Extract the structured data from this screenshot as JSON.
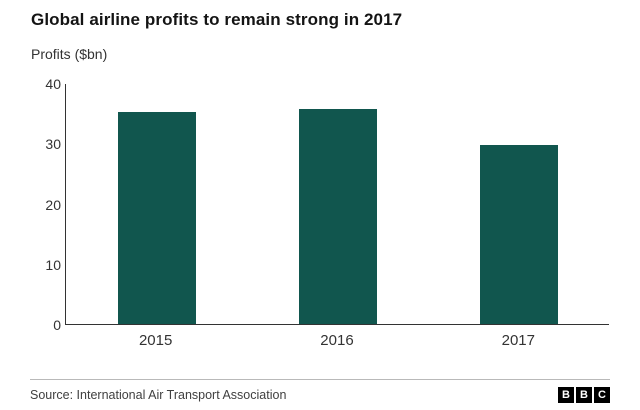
{
  "title": "Global airline profits to remain strong in 2017",
  "subtitle": "Profits ($bn)",
  "chart_data": {
    "type": "bar",
    "categories": [
      "2015",
      "2016",
      "2017"
    ],
    "values": [
      35.4,
      35.8,
      29.9
    ],
    "title": "Global airline profits to remain strong in 2017",
    "xlabel": "",
    "ylabel": "Profits ($bn)",
    "ylim": [
      0,
      40
    ],
    "yticks": [
      0,
      10,
      20,
      30,
      40
    ],
    "bar_color": "#11564e",
    "grid": false,
    "legend": "none"
  },
  "footer": {
    "source": "Source: International Air Transport Association",
    "logo_letters": [
      "B",
      "B",
      "C"
    ]
  }
}
